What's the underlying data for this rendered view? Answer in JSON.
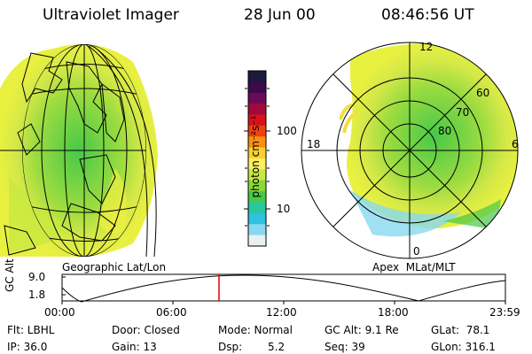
{
  "header": {
    "instrument": "Ultraviolet Imager",
    "date": "28 Jun 00",
    "time": "08:46:56 UT"
  },
  "colorbar": {
    "unit_label": "photon cm⁻²s⁻¹",
    "ticks": [
      "100",
      "10"
    ],
    "colors": [
      "#1a1a3a",
      "#3a0a4a",
      "#6a0a5a",
      "#a00a3a",
      "#d8101a",
      "#f04010",
      "#f89010",
      "#f8d030",
      "#fff060",
      "#c8e840",
      "#88d838",
      "#48c848",
      "#28c8a0",
      "#30c0e0",
      "#88d8f0",
      "#e8f0f4"
    ]
  },
  "left_map": {
    "caption": "Geographic Lat/Lon"
  },
  "right_map": {
    "caption": "Apex  MLat/MLT",
    "mlt_labels": {
      "top": "12",
      "left": "18",
      "right": "6",
      "bottom": "0"
    },
    "lat_labels": [
      "60",
      "70",
      "80"
    ]
  },
  "timeline": {
    "axis_label": "GC Alt",
    "y_ticks": [
      "9.0",
      "1.8"
    ],
    "x_ticks": [
      "00:00",
      "06:00",
      "12:00",
      "18:00",
      "23:59"
    ],
    "marker_time": "08:46:56",
    "marker_color": "#e00000"
  },
  "info": {
    "row1": {
      "filter": "Flt: LBHL",
      "door": "Door: Closed",
      "mode": "Mode: Normal",
      "gc_alt": "GC Alt: 9.1 Re",
      "glat": "GLat:  78.1"
    },
    "row2": {
      "ip": "IP: 36.0",
      "gain": "Gain: 13",
      "dsp_label": "Dsp:",
      "dsp_value": "5.2",
      "seq": "Seq: 39",
      "glon": "GLon: 316.1"
    }
  }
}
